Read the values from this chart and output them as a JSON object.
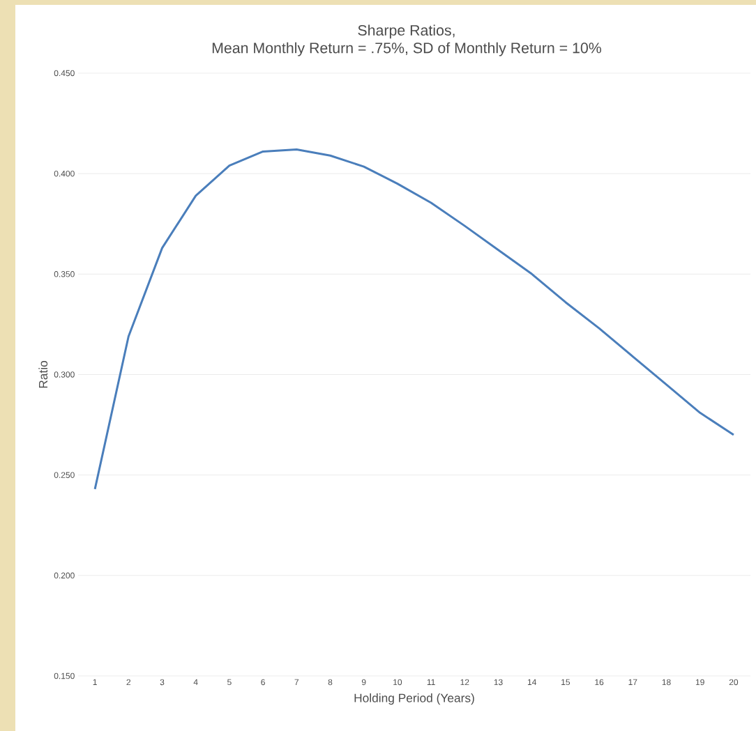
{
  "chart_data": {
    "type": "line",
    "title": "Sharpe Ratios,",
    "subtitle": "Mean Monthly Return = .75%, SD of Monthly Return = 10%",
    "xlabel": "Holding Period (Years)",
    "ylabel": "Ratio",
    "categories": [
      "1",
      "2",
      "3",
      "4",
      "5",
      "6",
      "7",
      "8",
      "9",
      "10",
      "11",
      "12",
      "13",
      "14",
      "15",
      "16",
      "17",
      "18",
      "19",
      "20"
    ],
    "series": [
      {
        "color": "#4a7ebb",
        "values": [
          0.243,
          0.319,
          0.363,
          0.389,
          0.404,
          0.411,
          0.412,
          0.409,
          0.4035,
          0.395,
          0.3855,
          0.374,
          0.362,
          0.35,
          0.336,
          0.323,
          0.309,
          0.295,
          0.281,
          0.27
        ]
      }
    ],
    "ylim": [
      0.15,
      0.45
    ],
    "yticks": [
      {
        "value": 0.15,
        "label": "0.150"
      },
      {
        "value": 0.2,
        "label": "0.200"
      },
      {
        "value": 0.25,
        "label": "0.250"
      },
      {
        "value": 0.3,
        "label": "0.300"
      },
      {
        "value": 0.35,
        "label": "0.350"
      },
      {
        "value": 0.4,
        "label": "0.400"
      },
      {
        "value": 0.45,
        "label": "0.450"
      }
    ],
    "grid": "y",
    "marker": "none",
    "line_style": "solid"
  }
}
